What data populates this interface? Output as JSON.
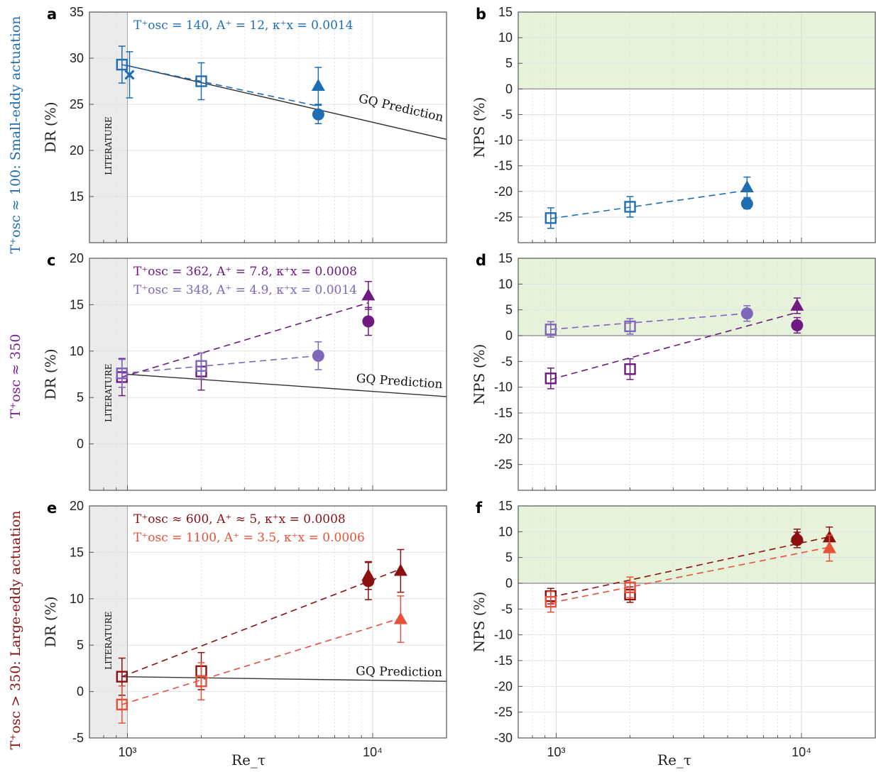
{
  "figure": {
    "x_axis_label": "Re_τ",
    "row_labels": [
      {
        "text": "T⁺osc ≈ 100: Small-eddy actuation",
        "color": "#1f6db3"
      },
      {
        "text": "T⁺osc ≈ 350",
        "color": "#7a1d8f"
      },
      {
        "text": "T⁺osc > 350: Large-eddy actuation",
        "color": "#8b1010"
      }
    ],
    "literature_label": "LITERATURE",
    "gq_label": "GQ Prediction",
    "x_tick_labels": [
      "10³",
      "10⁴"
    ]
  },
  "chart_data": [
    {
      "panel": "a",
      "type": "scatter",
      "ylabel": "DR (%)",
      "xscale": "log",
      "xlim": [
        700,
        20000
      ],
      "ylim": [
        10,
        35
      ],
      "yticks": [
        15,
        20,
        25,
        30,
        35
      ],
      "literature_region": [
        700,
        1000
      ],
      "annotations": [
        {
          "text": "T⁺osc = 140, A⁺ = 12, κ⁺x = 0.0014",
          "color": "#1f6db3"
        }
      ],
      "gq_line": {
        "x": [
          1000,
          20000
        ],
        "y": [
          29.2,
          21.2
        ],
        "label": "GQ Prediction"
      },
      "series": [
        {
          "color": "#1f6db3",
          "dashed": [
            [
              950,
              29.3
            ],
            [
              6000,
              24.8
            ]
          ],
          "points": [
            {
              "x": 950,
              "y": 29.3,
              "marker": "open-square",
              "err": 2.0
            },
            {
              "x": 1020,
              "y": 28.2,
              "marker": "cross",
              "err": 2.5
            },
            {
              "x": 2000,
              "y": 27.5,
              "marker": "open-square",
              "err": 2.0
            },
            {
              "x": 6000,
              "y": 27.0,
              "marker": "triangle",
              "err": 2.0
            },
            {
              "x": 6000,
              "y": 23.9,
              "marker": "circle",
              "err": 1.0
            }
          ]
        }
      ]
    },
    {
      "panel": "b",
      "type": "scatter",
      "ylabel": "NPS (%)",
      "xscale": "log",
      "xlim": [
        700,
        20000
      ],
      "ylim": [
        -30,
        15
      ],
      "yticks": [
        -25,
        -20,
        -15,
        -10,
        -5,
        0,
        5,
        10,
        15
      ],
      "positive_region": true,
      "series": [
        {
          "color": "#1f6db3",
          "dashed": [
            [
              950,
              -25.3
            ],
            [
              6000,
              -19.8
            ]
          ],
          "points": [
            {
              "x": 950,
              "y": -25.2,
              "marker": "open-square",
              "err": 2.0
            },
            {
              "x": 2000,
              "y": -23.0,
              "marker": "open-square",
              "err": 2.0
            },
            {
              "x": 6000,
              "y": -19.2,
              "marker": "triangle",
              "err": 2.0
            },
            {
              "x": 6000,
              "y": -22.4,
              "marker": "circle",
              "err": 1.0
            }
          ]
        }
      ]
    },
    {
      "panel": "c",
      "type": "scatter",
      "ylabel": "DR (%)",
      "xscale": "log",
      "xlim": [
        700,
        20000
      ],
      "ylim": [
        -5,
        20
      ],
      "yticks": [
        0,
        5,
        10,
        15,
        20
      ],
      "literature_region": [
        700,
        1000
      ],
      "annotations": [
        {
          "text": "T⁺osc = 362, A⁺ = 7.8, κ⁺x = 0.0008",
          "color": "#6e1a80"
        },
        {
          "text": "T⁺osc = 348, A⁺ = 4.9, κ⁺x = 0.0014",
          "color": "#7e66b8"
        }
      ],
      "gq_line": {
        "x": [
          1000,
          20000
        ],
        "y": [
          7.5,
          5.1
        ],
        "label": "GQ Prediction"
      },
      "series": [
        {
          "color": "#6e1a80",
          "dashed": [
            [
              950,
              7.2
            ],
            [
              9600,
              15.2
            ]
          ],
          "points": [
            {
              "x": 950,
              "y": 7.2,
              "marker": "open-square",
              "err": 2.0
            },
            {
              "x": 2000,
              "y": 7.8,
              "marker": "open-square",
              "err": 2.0
            },
            {
              "x": 9600,
              "y": 16.0,
              "marker": "triangle",
              "err": 1.5
            },
            {
              "x": 9600,
              "y": 13.2,
              "marker": "circle",
              "err": 1.5
            }
          ]
        },
        {
          "color": "#7e66b8",
          "dashed": [
            [
              950,
              7.6
            ],
            [
              6000,
              9.5
            ]
          ],
          "points": [
            {
              "x": 950,
              "y": 7.6,
              "marker": "open-square",
              "err": 1.5
            },
            {
              "x": 2000,
              "y": 8.4,
              "marker": "open-square",
              "err": 1.4
            },
            {
              "x": 6000,
              "y": 9.5,
              "marker": "circle",
              "err": 1.5
            }
          ]
        }
      ]
    },
    {
      "panel": "d",
      "type": "scatter",
      "ylabel": "NPS (%)",
      "xscale": "log",
      "xlim": [
        700,
        20000
      ],
      "ylim": [
        -30,
        15
      ],
      "yticks": [
        -25,
        -20,
        -15,
        -10,
        -5,
        0,
        5,
        10,
        15
      ],
      "positive_region": true,
      "series": [
        {
          "color": "#7e66b8",
          "dashed": [
            [
              950,
              1.2
            ],
            [
              6000,
              4.3
            ]
          ],
          "points": [
            {
              "x": 950,
              "y": 1.2,
              "marker": "open-square",
              "err": 1.5
            },
            {
              "x": 2000,
              "y": 1.8,
              "marker": "open-square",
              "err": 1.5
            },
            {
              "x": 6000,
              "y": 4.3,
              "marker": "circle",
              "err": 1.5
            }
          ]
        },
        {
          "color": "#6e1a80",
          "dashed": [
            [
              950,
              -8.5
            ],
            [
              9600,
              4.5
            ]
          ],
          "points": [
            {
              "x": 950,
              "y": -8.3,
              "marker": "open-square",
              "err": 2.0
            },
            {
              "x": 2000,
              "y": -6.5,
              "marker": "open-square",
              "err": 2.0
            },
            {
              "x": 9600,
              "y": 5.8,
              "marker": "triangle",
              "err": 1.5
            },
            {
              "x": 9600,
              "y": 2.0,
              "marker": "circle",
              "err": 1.5
            }
          ]
        }
      ]
    },
    {
      "panel": "e",
      "type": "scatter",
      "ylabel": "DR (%)",
      "xscale": "log",
      "xlim": [
        700,
        20000
      ],
      "ylim": [
        -5,
        20
      ],
      "yticks": [
        -5,
        0,
        5,
        10,
        15,
        20
      ],
      "literature_region": [
        700,
        1000
      ],
      "annotations": [
        {
          "text": "T⁺osc ≈ 600, A⁺ ≈ 5, κ⁺x = 0.0008",
          "color": "#8b1010"
        },
        {
          "text": "T⁺osc = 1100, A⁺ = 3.5, κ⁺x = 0.0006",
          "color": "#e8503a"
        }
      ],
      "gq_line": {
        "x": [
          950,
          20000
        ],
        "y": [
          1.6,
          1.1
        ],
        "label": "GQ Prediction"
      },
      "series": [
        {
          "color": "#8b1010",
          "dashed": [
            [
              950,
              1.6
            ],
            [
              13000,
              13.2
            ]
          ],
          "points": [
            {
              "x": 950,
              "y": 1.6,
              "marker": "open-square",
              "err": 2.0
            },
            {
              "x": 2000,
              "y": 2.2,
              "marker": "open-square",
              "err": 2.0
            },
            {
              "x": 9600,
              "y": 12.5,
              "marker": "triangle",
              "err": 1.5
            },
            {
              "x": 9600,
              "y": 11.9,
              "marker": "circle",
              "err": 2.0
            },
            {
              "x": 13000,
              "y": 13.0,
              "marker": "triangle",
              "err": 2.3
            }
          ]
        },
        {
          "color": "#e8503a",
          "dashed": [
            [
              950,
              -1.4
            ],
            [
              13000,
              7.9
            ]
          ],
          "points": [
            {
              "x": 950,
              "y": -1.4,
              "marker": "open-square",
              "err": 2.0
            },
            {
              "x": 2000,
              "y": 1.1,
              "marker": "open-square",
              "err": 2.0
            },
            {
              "x": 13000,
              "y": 7.8,
              "marker": "triangle",
              "err": 2.5
            }
          ]
        }
      ]
    },
    {
      "panel": "f",
      "type": "scatter",
      "ylabel": "NPS (%)",
      "xscale": "log",
      "xlim": [
        700,
        20000
      ],
      "ylim": [
        -30,
        15
      ],
      "yticks": [
        -30,
        -25,
        -20,
        -15,
        -10,
        -5,
        0,
        5,
        10,
        15
      ],
      "positive_region": true,
      "series": [
        {
          "color": "#8b1010",
          "dashed": [
            [
              950,
              -2.7
            ],
            [
              13000,
              9.0
            ]
          ],
          "points": [
            {
              "x": 950,
              "y": -2.5,
              "marker": "open-square",
              "err": 1.5
            },
            {
              "x": 2000,
              "y": -2.2,
              "marker": "open-square",
              "err": 1.5
            },
            {
              "x": 9600,
              "y": 9.0,
              "marker": "triangle",
              "err": 1.5
            },
            {
              "x": 9600,
              "y": 8.4,
              "marker": "circle",
              "err": 1.5
            },
            {
              "x": 13000,
              "y": 8.9,
              "marker": "triangle",
              "err": 2.0
            }
          ]
        },
        {
          "color": "#e8503a",
          "dashed": [
            [
              950,
              -3.8
            ],
            [
              13000,
              7.0
            ]
          ],
          "points": [
            {
              "x": 950,
              "y": -3.6,
              "marker": "open-square",
              "err": 2.0
            },
            {
              "x": 2000,
              "y": -0.8,
              "marker": "open-square",
              "err": 2.0
            },
            {
              "x": 13000,
              "y": 6.8,
              "marker": "triangle",
              "err": 2.5
            }
          ]
        }
      ]
    }
  ]
}
